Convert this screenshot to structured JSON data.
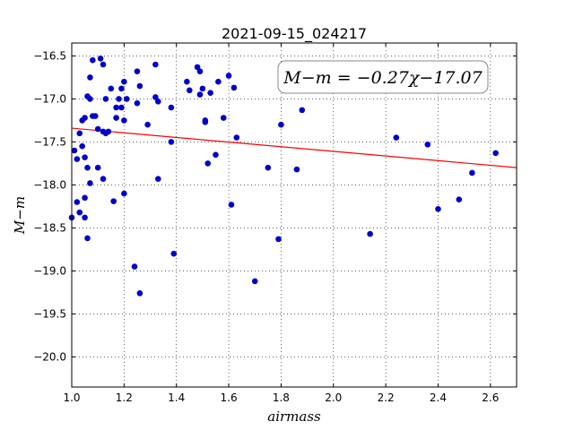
{
  "chart_data": {
    "type": "scatter",
    "title": "2021-09-15_024217",
    "xlabel": "airmass",
    "ylabel": "M−m",
    "xlim": [
      1.0,
      2.7
    ],
    "ylim": [
      -16.35,
      -20.35
    ],
    "y_inverted": true,
    "xticks": [
      1.0,
      1.2,
      1.4,
      1.6,
      1.8,
      2.0,
      2.2,
      2.4,
      2.6
    ],
    "xtick_labels": [
      "1.0",
      "1.2",
      "1.4",
      "1.6",
      "1.8",
      "2.0",
      "2.2",
      "2.4",
      "2.6"
    ],
    "yticks": [
      -16.5,
      -17.0,
      -17.5,
      -18.0,
      -18.5,
      -19.0,
      -19.5,
      -20.0
    ],
    "ytick_labels": [
      "−16.5",
      "−17.0",
      "−17.5",
      "−18.0",
      "−18.5",
      "−19.0",
      "−19.5",
      "−20.0"
    ],
    "grid": true,
    "annotation": "M−m = −0.27χ−17.07",
    "fit": {
      "slope": -0.27,
      "intercept": -17.07,
      "color": "#ff0000"
    },
    "marker_color": "#0000cc",
    "series": [
      {
        "x": [
          1.0,
          1.01,
          1.02,
          1.02,
          1.03,
          1.03,
          1.04,
          1.04,
          1.05,
          1.05,
          1.05,
          1.05,
          1.06,
          1.06,
          1.06,
          1.07,
          1.07,
          1.07,
          1.08,
          1.08,
          1.09,
          1.1,
          1.1,
          1.11,
          1.12,
          1.12,
          1.12,
          1.13,
          1.13,
          1.14,
          1.15,
          1.16,
          1.17,
          1.17,
          1.18,
          1.19,
          1.19,
          1.2,
          1.2,
          1.2,
          1.21,
          1.24,
          1.25,
          1.25,
          1.26,
          1.26,
          1.29,
          1.32,
          1.32,
          1.33,
          1.33,
          1.38,
          1.38,
          1.39,
          1.44,
          1.45,
          1.48,
          1.49,
          1.49,
          1.5,
          1.51,
          1.51,
          1.52,
          1.53,
          1.55,
          1.56,
          1.58,
          1.6,
          1.61,
          1.62,
          1.63,
          1.7,
          1.75,
          1.79,
          1.8,
          1.86,
          1.88,
          2.14,
          2.24,
          2.36,
          2.4,
          2.48,
          2.53,
          2.62
        ],
        "y": [
          -18.38,
          -17.6,
          -18.2,
          -17.7,
          -18.32,
          -17.4,
          -17.25,
          -17.55,
          -17.22,
          -17.68,
          -18.15,
          -18.38,
          -16.97,
          -17.8,
          -18.62,
          -16.75,
          -17.0,
          -17.98,
          -16.55,
          -17.2,
          -17.2,
          -17.8,
          -17.35,
          -16.53,
          -16.6,
          -17.93,
          -17.38,
          -17.0,
          -17.4,
          -17.38,
          -16.88,
          -18.19,
          -17.22,
          -17.1,
          -17.0,
          -16.88,
          -17.1,
          -16.8,
          -17.25,
          -18.1,
          -17.0,
          -18.95,
          -16.68,
          -17.05,
          -16.85,
          -19.26,
          -17.3,
          -16.6,
          -16.98,
          -17.03,
          -17.93,
          -17.1,
          -17.5,
          -18.8,
          -16.8,
          -16.9,
          -16.63,
          -16.68,
          -16.95,
          -16.88,
          -17.25,
          -17.27,
          -17.75,
          -16.93,
          -17.65,
          -16.8,
          -17.22,
          -16.73,
          -18.23,
          -16.87,
          -17.45,
          -19.12,
          -17.8,
          -18.63,
          -17.3,
          -17.82,
          -17.13,
          -18.57,
          -17.45,
          -17.53,
          -18.28,
          -18.17,
          -17.86,
          -17.63
        ]
      }
    ]
  }
}
